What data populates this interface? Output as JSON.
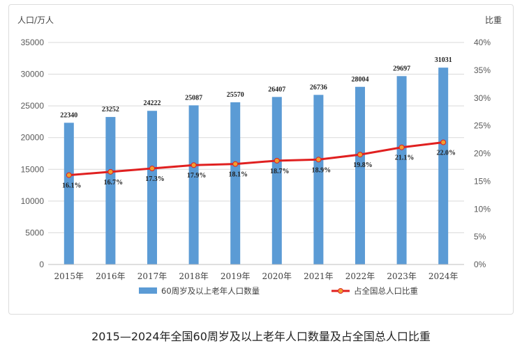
{
  "caption": "2015—2024年全国60周岁及以上老年人口数量及占全国总人口比重",
  "colors": {
    "bar": "#5b9bd5",
    "line": "#e02020",
    "marker": "#f0a030",
    "grid": "#d9d9d9",
    "axis": "#bfbfbf"
  },
  "chart_data": {
    "type": "bar",
    "title": "",
    "left_axis_label": "人口/万人",
    "right_axis_label": "比重",
    "categories": [
      "2015年",
      "2016年",
      "2017年",
      "2018年",
      "2019年",
      "2020年",
      "2021年",
      "2022年",
      "2023年",
      "2024年"
    ],
    "left_ylim": [
      0,
      35000
    ],
    "left_ticks": [
      0,
      5000,
      10000,
      15000,
      20000,
      25000,
      30000,
      35000
    ],
    "right_ylim": [
      0,
      40
    ],
    "right_ticks": [
      "0%",
      "5%",
      "10%",
      "15%",
      "20%",
      "25%",
      "30%",
      "35%",
      "40%"
    ],
    "grid": true,
    "legend_position": "bottom",
    "series": [
      {
        "name": "60周岁及以上老年人口数量",
        "kind": "bar",
        "axis": "left",
        "values": [
          22340,
          23252,
          24222,
          25087,
          25570,
          26407,
          26736,
          28004,
          29697,
          31031
        ],
        "labels": [
          "22340",
          "23252",
          "24222",
          "25087",
          "25570",
          "26407",
          "26736",
          "28004",
          "29697",
          "31031"
        ]
      },
      {
        "name": "占全国总人口比重",
        "kind": "line",
        "axis": "right",
        "values": [
          16.1,
          16.7,
          17.3,
          17.9,
          18.1,
          18.7,
          18.9,
          19.8,
          21.1,
          22.0
        ],
        "labels": [
          "16.1%",
          "16.7%",
          "17.3%",
          "17.9%",
          "18.1%",
          "18.7%",
          "18.9%",
          "19.8%",
          "21.1%",
          "22.0%"
        ]
      }
    ]
  }
}
